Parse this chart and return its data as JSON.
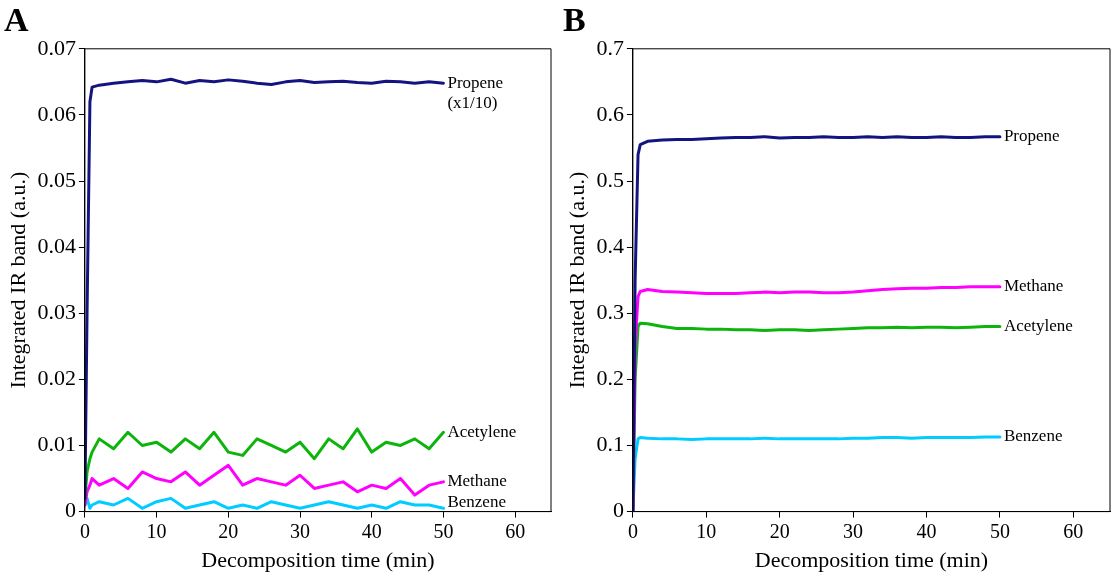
{
  "chart_data": [
    {
      "type": "line",
      "title": "A",
      "xlabel": "Decomposition time (min)",
      "ylabel": "Integrated IR band (a.u.)",
      "x": [
        0,
        0.3,
        0.7,
        1,
        2,
        4,
        6,
        8,
        10,
        12,
        14,
        16,
        18,
        20,
        22,
        24,
        26,
        28,
        30,
        32,
        34,
        36,
        38,
        40,
        42,
        44,
        46,
        48,
        50
      ],
      "series": [
        {
          "name": "Propene (x1/10)",
          "color": "#141480",
          "values": [
            0.002,
            0.03,
            0.062,
            0.0642,
            0.0645,
            0.0648,
            0.065,
            0.0652,
            0.065,
            0.0654,
            0.0648,
            0.0652,
            0.065,
            0.0653,
            0.0651,
            0.0648,
            0.0646,
            0.065,
            0.0652,
            0.0649,
            0.065,
            0.0651,
            0.0649,
            0.0648,
            0.0651,
            0.065,
            0.0648,
            0.065,
            0.0648
          ]
        },
        {
          "name": "Acetylene",
          "color": "#0cb40c",
          "values": [
            0.002,
            0.006,
            0.008,
            0.009,
            0.011,
            0.0095,
            0.012,
            0.01,
            0.0105,
            0.009,
            0.011,
            0.0095,
            0.012,
            0.009,
            0.0085,
            0.011,
            0.01,
            0.009,
            0.0105,
            0.008,
            0.011,
            0.0095,
            0.0125,
            0.009,
            0.0105,
            0.01,
            0.011,
            0.0095,
            0.012
          ]
        },
        {
          "name": "Methane",
          "color": "#ff00ff",
          "values": [
            0.001,
            0.003,
            0.004,
            0.005,
            0.004,
            0.005,
            0.0035,
            0.006,
            0.005,
            0.0045,
            0.006,
            0.004,
            0.0055,
            0.007,
            0.004,
            0.005,
            0.0045,
            0.004,
            0.0055,
            0.0035,
            0.004,
            0.0045,
            0.003,
            0.004,
            0.0035,
            0.005,
            0.0025,
            0.004,
            0.0045
          ]
        },
        {
          "name": "Benzene",
          "color": "#00ccff",
          "values": [
            0.001,
            0.002,
            0.0005,
            0.001,
            0.0015,
            0.001,
            0.002,
            0.0005,
            0.0015,
            0.002,
            0.0005,
            0.001,
            0.0015,
            0.0005,
            0.001,
            0.0005,
            0.0015,
            0.001,
            0.0005,
            0.001,
            0.0015,
            0.001,
            0.0005,
            0.001,
            0.0005,
            0.0015,
            0.001,
            0.001,
            0.0005
          ]
        }
      ],
      "xlim": [
        0,
        65
      ],
      "xticks": [
        0,
        10,
        20,
        30,
        40,
        50,
        60
      ],
      "ylim": [
        0,
        0.07
      ],
      "yticks": [
        0,
        0.01,
        0.02,
        0.03,
        0.04,
        0.05,
        0.06,
        0.07
      ],
      "grid": false,
      "legend": false,
      "marker": "none",
      "line_style": "solid"
    },
    {
      "type": "line",
      "title": "B",
      "xlabel": "Decomposition time (min)",
      "ylabel": "Integrated IR band (a.u.)",
      "x": [
        0,
        0.3,
        0.7,
        1,
        2,
        4,
        6,
        8,
        10,
        12,
        14,
        16,
        18,
        20,
        22,
        24,
        26,
        28,
        30,
        32,
        34,
        36,
        38,
        40,
        42,
        44,
        46,
        48,
        50
      ],
      "series": [
        {
          "name": "Propene",
          "color": "#141480",
          "values": [
            0,
            0.35,
            0.54,
            0.555,
            0.56,
            0.562,
            0.563,
            0.563,
            0.564,
            0.565,
            0.566,
            0.566,
            0.567,
            0.565,
            0.566,
            0.566,
            0.567,
            0.566,
            0.566,
            0.567,
            0.566,
            0.567,
            0.566,
            0.566,
            0.567,
            0.566,
            0.566,
            0.567,
            0.567
          ]
        },
        {
          "name": "Methane",
          "color": "#ff00ff",
          "values": [
            0,
            0.25,
            0.325,
            0.333,
            0.336,
            0.333,
            0.332,
            0.331,
            0.33,
            0.33,
            0.33,
            0.331,
            0.332,
            0.331,
            0.332,
            0.332,
            0.331,
            0.331,
            0.332,
            0.334,
            0.336,
            0.337,
            0.338,
            0.338,
            0.339,
            0.339,
            0.34,
            0.34,
            0.34
          ]
        },
        {
          "name": "Acetylene",
          "color": "#0cb40c",
          "values": [
            0,
            0.2,
            0.28,
            0.285,
            0.284,
            0.28,
            0.277,
            0.277,
            0.276,
            0.276,
            0.275,
            0.275,
            0.274,
            0.275,
            0.275,
            0.274,
            0.275,
            0.276,
            0.277,
            0.278,
            0.278,
            0.279,
            0.278,
            0.279,
            0.279,
            0.278,
            0.279,
            0.28,
            0.28
          ]
        },
        {
          "name": "Benzene",
          "color": "#00ccff",
          "values": [
            0,
            0.08,
            0.11,
            0.112,
            0.111,
            0.11,
            0.11,
            0.109,
            0.11,
            0.11,
            0.11,
            0.11,
            0.111,
            0.11,
            0.11,
            0.11,
            0.11,
            0.11,
            0.111,
            0.111,
            0.112,
            0.112,
            0.111,
            0.112,
            0.112,
            0.112,
            0.112,
            0.113,
            0.113
          ]
        }
      ],
      "xlim": [
        0,
        65
      ],
      "xticks": [
        0,
        10,
        20,
        30,
        40,
        50,
        60
      ],
      "ylim": [
        0,
        0.7
      ],
      "yticks": [
        0,
        0.1,
        0.2,
        0.3,
        0.4,
        0.5,
        0.6,
        0.7
      ],
      "grid": false,
      "legend": false,
      "marker": "none",
      "line_style": "solid"
    }
  ]
}
